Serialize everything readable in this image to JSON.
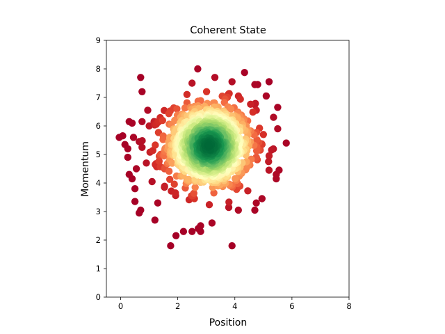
{
  "chart_data": {
    "type": "scatter",
    "title": "Coherent State",
    "xlabel": "Position",
    "ylabel": "Momentum",
    "xlim": [
      -0.5,
      8
    ],
    "ylim": [
      0,
      9
    ],
    "xticks": [
      "0",
      "2",
      "4",
      "6",
      "8"
    ],
    "yticks": [
      "0",
      "1",
      "2",
      "3",
      "4",
      "5",
      "6",
      "7",
      "8",
      "9"
    ],
    "grid": false,
    "legend": "none",
    "colormap": "RdYlGn (red = low density, green = high density)",
    "colors": [
      "#a50026",
      "#d73027",
      "#f46d43",
      "#fdae61",
      "#fee08b",
      "#ffffbf",
      "#d9ef8b",
      "#a6d96a",
      "#66bd63",
      "#1a9850",
      "#006837"
    ],
    "center": [
      3.1,
      5.3
    ],
    "spread": 0.75,
    "n_points": 1000,
    "outer_points": [
      [
        -0.05,
        5.6
      ],
      [
        0.15,
        5.35
      ],
      [
        0.25,
        5.2
      ],
      [
        0.3,
        6.15
      ],
      [
        0.4,
        6.1
      ],
      [
        0.25,
        4.9
      ],
      [
        0.3,
        4.3
      ],
      [
        0.4,
        4.15
      ],
      [
        0.55,
        4.5
      ],
      [
        0.5,
        3.8
      ],
      [
        0.5,
        3.35
      ],
      [
        0.7,
        3.05
      ],
      [
        0.65,
        2.95
      ],
      [
        0.45,
        5.6
      ],
      [
        0.65,
        5.45
      ],
      [
        0.75,
        5.25
      ],
      [
        0.75,
        6.15
      ],
      [
        0.95,
        6.55
      ],
      [
        0.7,
        7.7
      ],
      [
        0.75,
        7.2
      ],
      [
        1.2,
        2.7
      ],
      [
        1.75,
        1.8
      ],
      [
        2.2,
        2.3
      ],
      [
        2.5,
        2.3
      ],
      [
        2.8,
        2.3
      ],
      [
        2.8,
        2.5
      ],
      [
        3.2,
        2.6
      ],
      [
        2.7,
        8.0
      ],
      [
        2.5,
        7.5
      ],
      [
        3.3,
        7.7
      ],
      [
        3.9,
        7.55
      ],
      [
        3.9,
        1.8
      ],
      [
        4.7,
        7.45
      ],
      [
        4.8,
        7.45
      ],
      [
        5.2,
        7.55
      ],
      [
        5.1,
        7.05
      ],
      [
        4.7,
        6.75
      ],
      [
        4.75,
        6.55
      ],
      [
        5.5,
        6.65
      ],
      [
        5.5,
        5.9
      ],
      [
        5.8,
        5.4
      ],
      [
        5.55,
        4.45
      ],
      [
        5.45,
        4.3
      ],
      [
        5.45,
        4.15
      ],
      [
        4.95,
        3.45
      ],
      [
        4.75,
        3.3
      ],
      [
        4.7,
        3.05
      ],
      [
        4.95,
        5.35
      ],
      [
        5.0,
        5.7
      ],
      [
        5.2,
        4.95
      ],
      [
        1.3,
        3.3
      ],
      [
        1.1,
        4.05
      ],
      [
        0.9,
        4.7
      ],
      [
        1.0,
        6.0
      ]
    ]
  }
}
